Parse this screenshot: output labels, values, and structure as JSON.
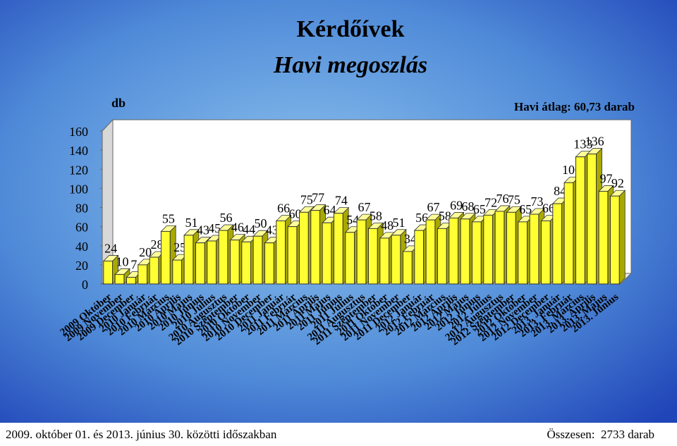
{
  "chart_data": {
    "type": "bar",
    "title": "Kérdőívek",
    "subtitle": "Havi megoszlás",
    "y_label": "db",
    "annotation": "Havi átlag: 60,73 darab",
    "footer_left": "2009. október 01. és 2013. június 30. közötti időszakban",
    "footer_right": "Összesen:  2733 darab",
    "categories": [
      "2009 Október",
      "2009 November",
      "2009 December",
      "2010 Január",
      "2010 Február",
      "2010 Március",
      "2010 Április",
      "2010 Május",
      "2010 Június",
      "2010 Július",
      "2010 Augusztus",
      "2010 Szeptember",
      "2010 Október",
      "2010 November",
      "2010 December",
      "2011 Január",
      "2011 Február",
      "2011 Március",
      "2011 Április",
      "2011 Május",
      "2011 Június",
      "2011 Július",
      "2011 Augusztus",
      "2011 Szeptember",
      "2011 Október",
      "2011 November",
      "2011 December",
      "2012 Január",
      "2012 Február",
      "2012 Március",
      "2012 Április",
      "2012 Május",
      "2012 Június",
      "2012 Július",
      "2012 Augusztus",
      "2012 Szeptember",
      "2012 Október",
      "2012 November",
      "2012 December",
      "2013. Január",
      "2013. Február",
      "2013. Március",
      "2013. Április",
      "2013. Május",
      "2013. Június"
    ],
    "values": [
      24,
      10,
      7,
      20,
      28,
      55,
      25,
      51,
      43,
      45,
      56,
      46,
      44,
      50,
      43,
      66,
      60,
      75,
      77,
      64,
      74,
      54,
      67,
      58,
      48,
      51,
      34,
      56,
      67,
      58,
      69,
      68,
      65,
      72,
      76,
      75,
      65,
      73,
      66,
      84,
      106,
      133,
      136,
      97,
      92
    ],
    "color": "#ffff33",
    "ylim": [
      0,
      160
    ],
    "yticks": [
      0,
      20,
      40,
      60,
      80,
      100,
      120,
      140,
      160
    ]
  }
}
